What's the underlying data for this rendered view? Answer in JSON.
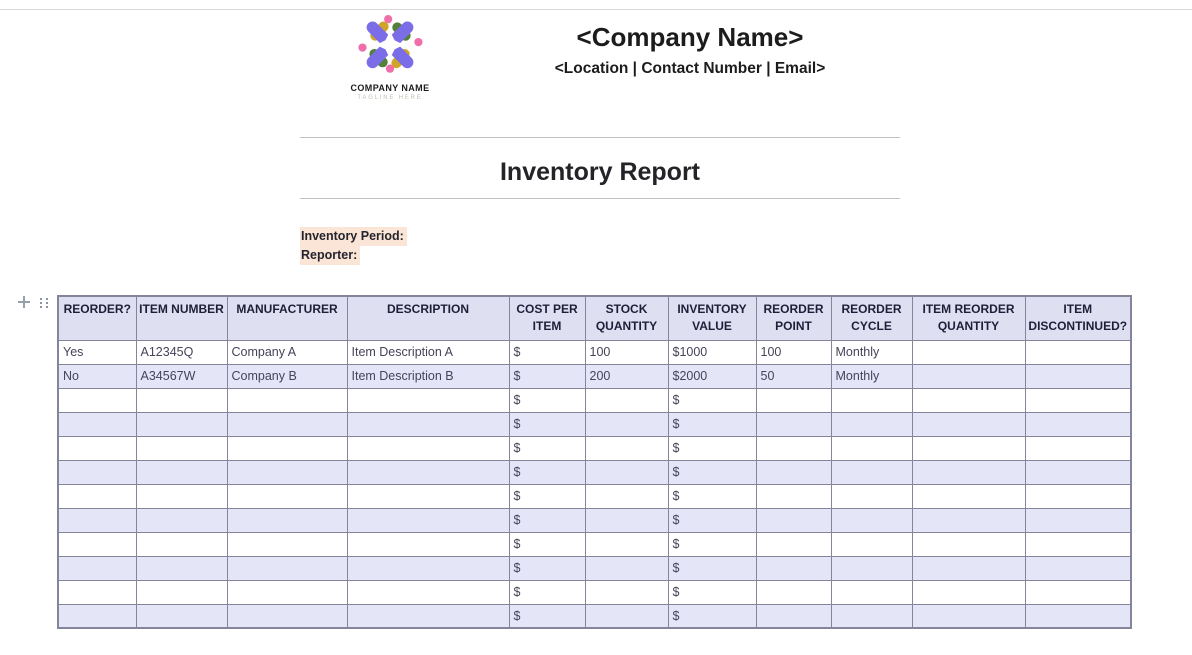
{
  "logo": {
    "company_name": "COMPANY NAME",
    "tagline": "TAGLINE HERE"
  },
  "header": {
    "company_name": "<Company Name>",
    "company_details": "<Location | Contact Number | Email>"
  },
  "document": {
    "title": "Inventory Report",
    "labels": [
      "Inventory Period:",
      "Reporter:"
    ]
  },
  "table_controls": {
    "add_icon": "plus",
    "drag_icon": "drag-handle"
  },
  "table": {
    "headers": [
      "REORDER?",
      "ITEM NUMBER",
      "MANUFACTURER",
      "DESCRIPTION",
      "COST PER ITEM",
      "STOCK QUANTITY",
      "INVENTORY VALUE",
      "REORDER POINT",
      "REORDER CYCLE",
      "ITEM REORDER QUANTITY",
      "ITEM DISCONTINUED?"
    ],
    "rows": [
      [
        "Yes",
        "A12345Q",
        "Company A",
        "Item Description A",
        "$",
        "100",
        "$1000",
        "100",
        "Monthly",
        "",
        ""
      ],
      [
        "No",
        "A34567W",
        "Company B",
        "Item Description B",
        "$",
        "200",
        "$2000",
        "50",
        "Monthly",
        "",
        ""
      ],
      [
        "",
        "",
        "",
        "",
        "$",
        "",
        "$",
        "",
        "",
        "",
        ""
      ],
      [
        "",
        "",
        "",
        "",
        "$",
        "",
        "$",
        "",
        "",
        "",
        ""
      ],
      [
        "",
        "",
        "",
        "",
        "$",
        "",
        "$",
        "",
        "",
        "",
        ""
      ],
      [
        "",
        "",
        "",
        "",
        "$",
        "",
        "$",
        "",
        "",
        "",
        ""
      ],
      [
        "",
        "",
        "",
        "",
        "$",
        "",
        "$",
        "",
        "",
        "",
        ""
      ],
      [
        "",
        "",
        "",
        "",
        "$",
        "",
        "$",
        "",
        "",
        "",
        ""
      ],
      [
        "",
        "",
        "",
        "",
        "$",
        "",
        "$",
        "",
        "",
        "",
        ""
      ],
      [
        "",
        "",
        "",
        "",
        "$",
        "",
        "$",
        "",
        "",
        "",
        ""
      ],
      [
        "",
        "",
        "",
        "",
        "$",
        "",
        "$",
        "",
        "",
        "",
        ""
      ],
      [
        "",
        "",
        "",
        "",
        "$",
        "",
        "$",
        "",
        "",
        "",
        ""
      ]
    ]
  },
  "colors": {
    "header_bg": "#dfdff2",
    "alt_row_bg": "#e4e6f8",
    "table_border": "#84849a",
    "label_highlight": "#fbe5d6",
    "logo_purple": "#7b6ce8",
    "logo_pink": "#f06ea9",
    "logo_yellow": "#d0a429",
    "logo_green": "#55803c"
  }
}
